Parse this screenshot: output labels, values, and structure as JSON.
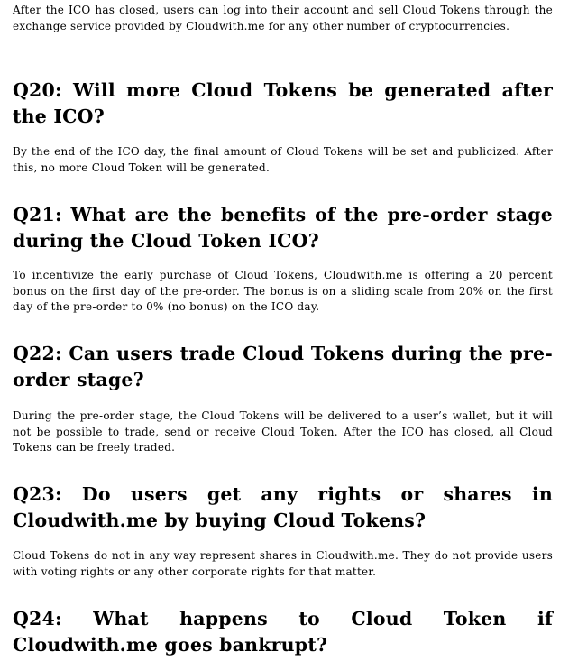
{
  "intro": "After the ICO has closed, users can log into their account and sell Cloud Tokens through the exchange service provided by Cloudwith.me for any other number of cryptocurrencies.",
  "faq": [
    {
      "question": "Q20: Will more Cloud Tokens be generated after the ICO?",
      "answer": "By the end of the ICO day, the final amount of Cloud Tokens will be set and publicized. After this, no more Cloud Token will be generated."
    },
    {
      "question": "Q21: What are the benefits of the pre-order stage during the Cloud Token ICO?",
      "answer": "To incentivize the early purchase of Cloud Tokens, Cloudwith.me is offering a 20 percent bonus on the first day of the pre-order. The bonus is on a sliding scale from 20% on the first day of the pre-order to 0% (no bonus) on the ICO day."
    },
    {
      "question": "Q22: Can users trade Cloud Tokens during the pre-order stage?",
      "answer": "During the pre-order stage, the Cloud Tokens will be delivered to a user’s wallet, but it will not be possible to trade, send or receive Cloud Token. After the ICO has closed, all Cloud Tokens can be freely traded."
    },
    {
      "question": "Q23: Do users get any rights or shares in Cloudwith.me by buying Cloud Tokens?",
      "answer": "Cloud Tokens do not in any way represent shares in Cloudwith.me. They do not provide users with voting rights or any other corporate rights for that matter."
    },
    {
      "question": "Q24: What happens to Cloud Token if Cloudwith.me goes bankrupt?"
    }
  ]
}
